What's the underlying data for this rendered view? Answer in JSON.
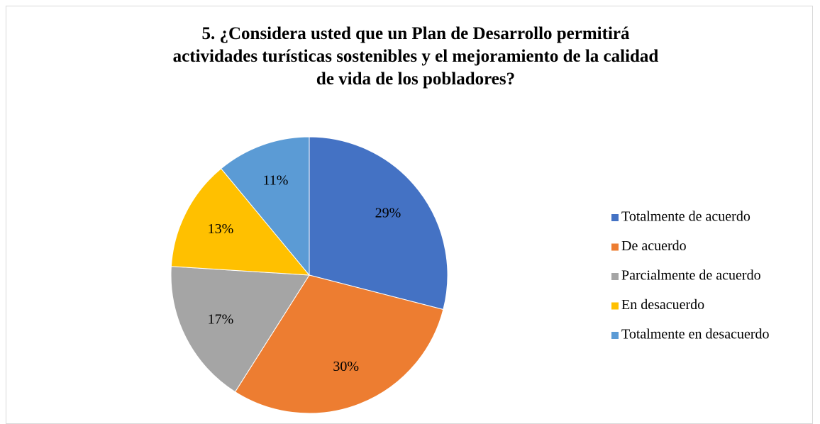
{
  "chart_data": {
    "type": "pie",
    "title": "5. ¿Considera usted que un Plan de Desarrollo permitirá actividades turísticas sostenibles y el mejoramiento de la calidad de vida de los pobladores?",
    "categories": [
      "Totalmente de acuerdo",
      "De acuerdo",
      "Parcialmente de acuerdo",
      "En desacuerdo",
      "Totalmente en desacuerdo"
    ],
    "values": [
      29,
      30,
      17,
      13,
      11
    ],
    "value_labels": [
      "29%",
      "30%",
      "17%",
      "13%",
      "11%"
    ],
    "colors": [
      "#4472c4",
      "#ed7d31",
      "#a5a5a5",
      "#ffc000",
      "#5b9bd5"
    ],
    "legend": "right"
  }
}
